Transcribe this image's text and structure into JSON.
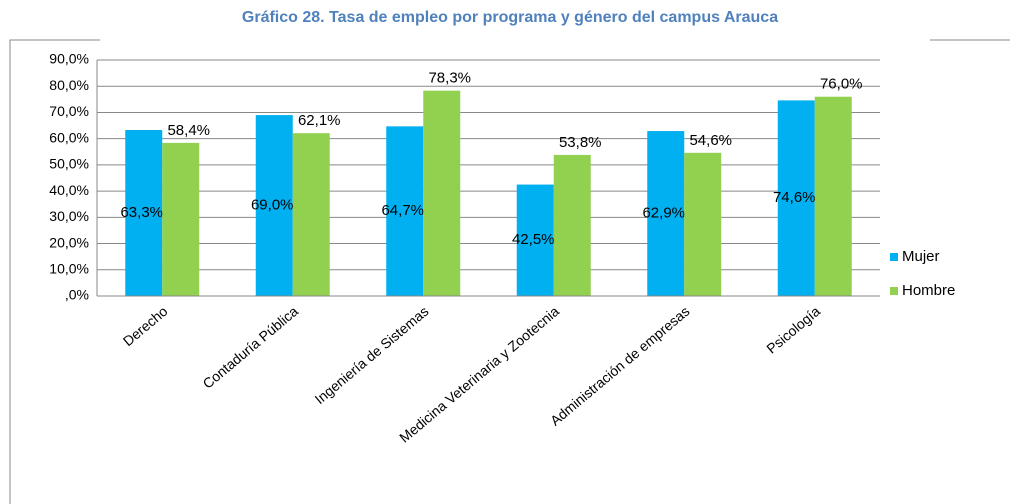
{
  "chart_data": {
    "type": "bar",
    "title": "Gráfico 28. Tasa de empleo por programa y género del campus Arauca",
    "categories": [
      "Derecho",
      "Contaduría Pública",
      "Ingeniería de Sistemas",
      "Medicina Veterinaria y Zootecnia",
      "Administración de empresas",
      "Psicología"
    ],
    "series": [
      {
        "name": "Mujer",
        "color": "#00b0f0",
        "values": [
          63.3,
          69.0,
          64.7,
          42.5,
          62.9,
          74.6
        ],
        "value_labels": [
          "63,3%",
          "69,0%",
          "64,7%",
          "42,5%",
          "62,9%",
          "74,6%"
        ]
      },
      {
        "name": "Hombre",
        "color": "#92d050",
        "values": [
          58.4,
          62.1,
          78.3,
          53.8,
          54.6,
          76.0
        ],
        "value_labels": [
          "58,4%",
          "62,1%",
          "78,3%",
          "53,8%",
          "54,6%",
          "76,0%"
        ]
      }
    ],
    "ylim": [
      0,
      90
    ],
    "yticks": [
      {
        "value": 0,
        "label": ",0%"
      },
      {
        "value": 10,
        "label": "10,0%"
      },
      {
        "value": 20,
        "label": "20,0%"
      },
      {
        "value": 30,
        "label": "30,0%"
      },
      {
        "value": 40,
        "label": "40,0%"
      },
      {
        "value": 50,
        "label": "50,0%"
      },
      {
        "value": 60,
        "label": "60,0%"
      },
      {
        "value": 70,
        "label": "70,0%"
      },
      {
        "value": 80,
        "label": "80,0%"
      },
      {
        "value": 90,
        "label": "90,0%"
      }
    ],
    "grid": true,
    "legend": "right"
  }
}
